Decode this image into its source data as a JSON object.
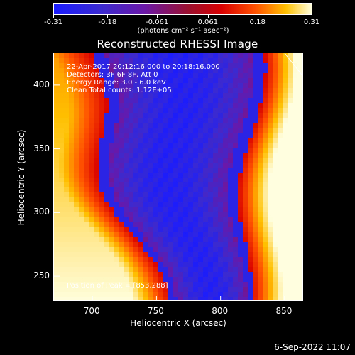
{
  "chart_data": {
    "type": "heatmap",
    "title": "Reconstructed RHESSI Image",
    "xlabel": "Heliocentric X (arcsec)",
    "ylabel": "Heliocentric Y (arcsec)",
    "xlim": [
      670,
      865
    ],
    "ylim": [
      230,
      425
    ],
    "x_ticks": [
      "700",
      "750",
      "800",
      "850"
    ],
    "y_ticks": [
      "250",
      "300",
      "350",
      "400"
    ],
    "x_tick_values": [
      700,
      750,
      800,
      850
    ],
    "y_tick_values": [
      250,
      300,
      350,
      400
    ],
    "colorbar": {
      "range": [
        -0.31,
        0.31
      ],
      "tick_labels": [
        "-0.31",
        "-0.18",
        "-0.061",
        "0.061",
        "0.18",
        "0.31"
      ],
      "tick_values": [
        -0.31,
        -0.18,
        -0.061,
        0.061,
        0.18,
        0.31
      ],
      "unit": "(photons cm⁻² s⁻¹ asec⁻²)",
      "colors": [
        "#1a1cff",
        "#3a2ad0",
        "#6a18a8",
        "#9a1030",
        "#d80000",
        "#ff5000",
        "#ffc000",
        "#ffffe0"
      ]
    },
    "annotations": {
      "time_range": "22-Apr-2017 20:12:16.000 to 20:18:16.000",
      "detectors": "Detectors: 3F 6F 8F, Att 0",
      "energy": "Energy Range: 3.0 - 6.0 keV",
      "method": "Clean     Total counts: 1.12E+05",
      "peak": "Position of Peak = [853,288]"
    }
  },
  "timestamp": "6-Sep-2022 11:07"
}
